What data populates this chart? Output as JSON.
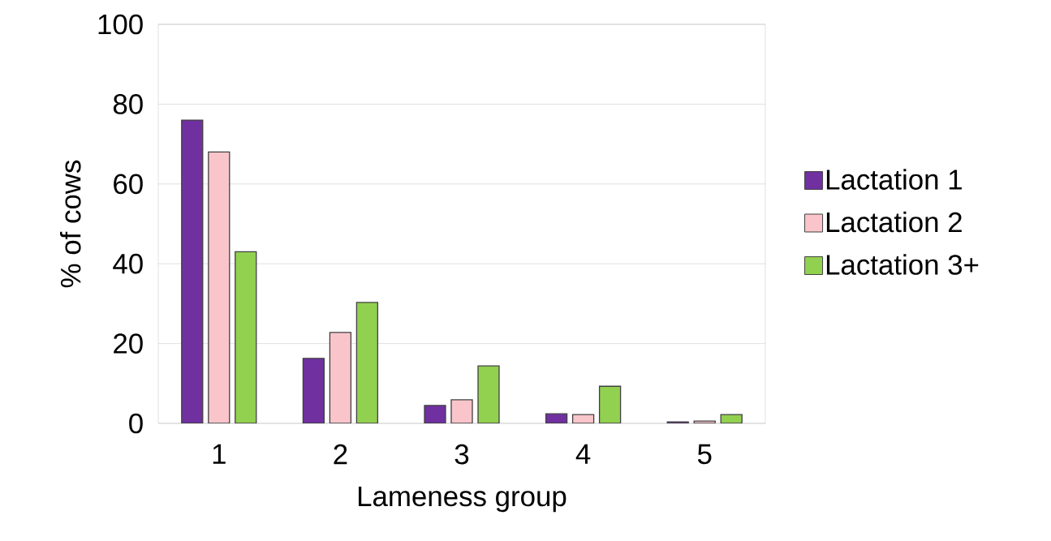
{
  "chart_data": {
    "type": "bar",
    "xlabel": "Lameness group",
    "ylabel": "% of cows",
    "categories": [
      "1",
      "2",
      "3",
      "4",
      "5"
    ],
    "series": [
      {
        "name": "Lactation 1",
        "color": "#7030a0",
        "values": [
          76,
          16.3,
          4.5,
          2.4,
          0.4
        ]
      },
      {
        "name": "Lactation 2",
        "color": "#f9c5cb",
        "values": [
          68,
          22.8,
          5.9,
          2.2,
          0.6
        ]
      },
      {
        "name": "Lactation 3+",
        "color": "#92d050",
        "values": [
          43,
          30.3,
          14.4,
          9.3,
          2.2
        ]
      }
    ],
    "ylim": [
      0,
      100
    ],
    "yticks": [
      0,
      20,
      40,
      60,
      80,
      100
    ],
    "grid": "y",
    "legend": "right"
  }
}
